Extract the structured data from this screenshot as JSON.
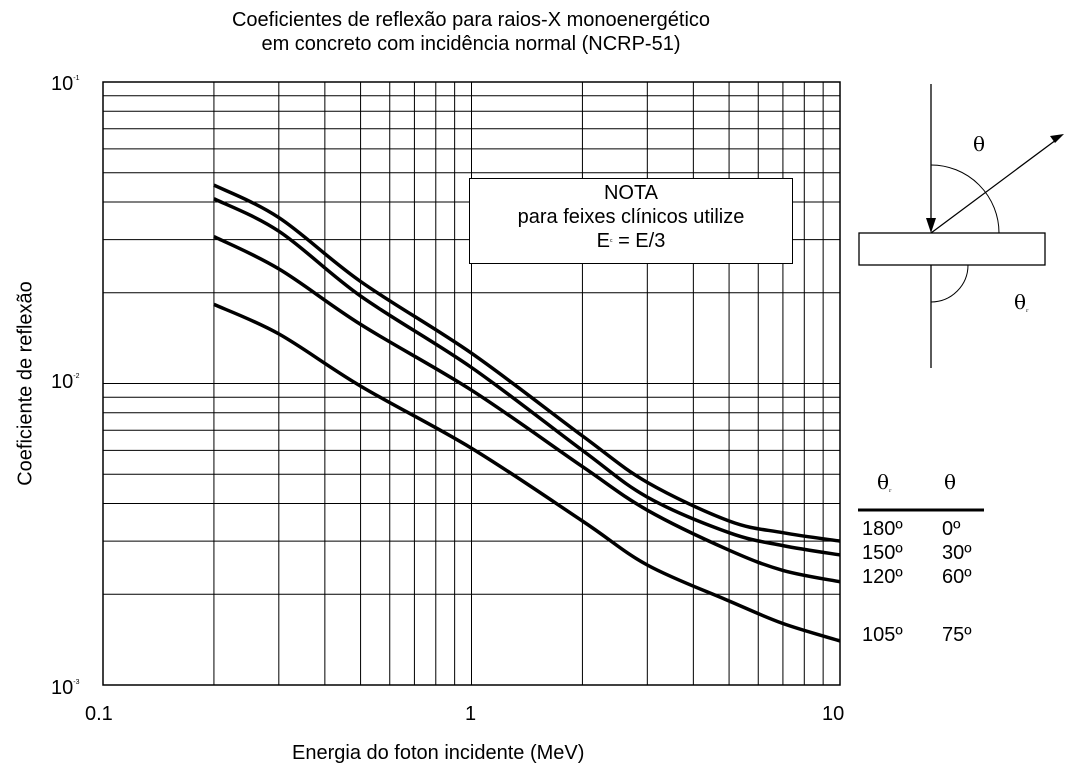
{
  "chart_data": {
    "type": "line",
    "title": "Coeficientes de reflexão para raios-X monoenergético",
    "subtitle": "em concreto com incidência normal (NCRP-51)",
    "xlabel": "Energia do foton incidente (MeV)",
    "ylabel": "Coeficiente de reflexão",
    "xscale": "log",
    "yscale": "log",
    "xlim": [
      0.1,
      10
    ],
    "ylim": [
      0.001,
      0.1
    ],
    "x_tick_labels": [
      "0.1",
      "1",
      "10"
    ],
    "y_tick_labels": [
      {
        "base": "10",
        "exp": "-1"
      },
      {
        "base": "10",
        "exp": "-2"
      },
      {
        "base": "10",
        "exp": "-3"
      }
    ],
    "grid": true,
    "series": [
      {
        "theta_r": "180º",
        "theta": "0º",
        "points": [
          [
            0.2,
            0.0455
          ],
          [
            0.3,
            0.0355
          ],
          [
            0.5,
            0.0218
          ],
          [
            1,
            0.0126
          ],
          [
            2,
            0.0067
          ],
          [
            3,
            0.0047
          ],
          [
            5,
            0.0035
          ],
          [
            7,
            0.0032
          ],
          [
            10,
            0.003
          ]
        ]
      },
      {
        "theta_r": "150º",
        "theta": "30º",
        "points": [
          [
            0.2,
            0.041
          ],
          [
            0.3,
            0.032
          ],
          [
            0.5,
            0.0195
          ],
          [
            1,
            0.0113
          ],
          [
            2,
            0.006
          ],
          [
            3,
            0.0042
          ],
          [
            5,
            0.0032
          ],
          [
            7,
            0.0029
          ],
          [
            10,
            0.0027
          ]
        ]
      },
      {
        "theta_r": "120º",
        "theta": "60º",
        "points": [
          [
            0.2,
            0.0307
          ],
          [
            0.3,
            0.024
          ],
          [
            0.5,
            0.0157
          ],
          [
            1,
            0.0095
          ],
          [
            2,
            0.0053
          ],
          [
            3,
            0.0038
          ],
          [
            5,
            0.0028
          ],
          [
            7,
            0.0024
          ],
          [
            10,
            0.0022
          ]
        ]
      },
      {
        "theta_r": "105º",
        "theta": "75º",
        "points": [
          [
            0.2,
            0.0183
          ],
          [
            0.3,
            0.0146
          ],
          [
            0.5,
            0.0098
          ],
          [
            1,
            0.0061
          ],
          [
            2,
            0.0035
          ],
          [
            3,
            0.0025
          ],
          [
            5,
            0.0019
          ],
          [
            7,
            0.0016
          ],
          [
            10,
            0.0014
          ]
        ]
      }
    ]
  },
  "note": {
    "line1": "NOTA",
    "line2": "para feixes clínicos utilize",
    "line3_main": "E",
    "line3_sub": "c",
    "line3_rest": " = E/3"
  },
  "diagram": {
    "theta": "θ",
    "theta_r_main": "θ",
    "theta_r_sub": "r"
  },
  "table": {
    "header_theta_r_main": "θ",
    "header_theta_r_sub": "r",
    "header_theta": "θ"
  }
}
